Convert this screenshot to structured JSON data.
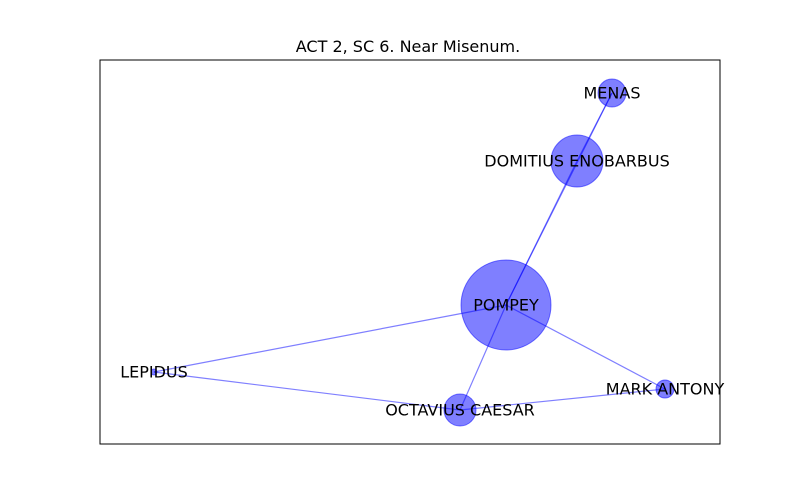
{
  "figure": {
    "title": "ACT 2, SC 6. Near Misenum."
  },
  "colors": {
    "node_fill": "#0000ff",
    "edge": "#0000ff",
    "frame": "#000000"
  },
  "graph": {
    "nodes": [
      {
        "id": "pompey",
        "label": "POMPEY"
      },
      {
        "id": "enobarbus",
        "label": "DOMITIUS ENOBARBUS"
      },
      {
        "id": "menas",
        "label": "MENAS"
      },
      {
        "id": "lepidus",
        "label": "LEPIDUS"
      },
      {
        "id": "caesar",
        "label": "OCTAVIUS CAESAR"
      },
      {
        "id": "antony",
        "label": "MARK ANTONY"
      }
    ],
    "edges": [
      {
        "source": "pompey",
        "target": "enobarbus"
      },
      {
        "source": "pompey",
        "target": "menas"
      },
      {
        "source": "enobarbus",
        "target": "menas"
      },
      {
        "source": "pompey",
        "target": "lepidus"
      },
      {
        "source": "pompey",
        "target": "caesar"
      },
      {
        "source": "pompey",
        "target": "antony"
      },
      {
        "source": "lepidus",
        "target": "caesar"
      },
      {
        "source": "caesar",
        "target": "antony"
      }
    ]
  }
}
